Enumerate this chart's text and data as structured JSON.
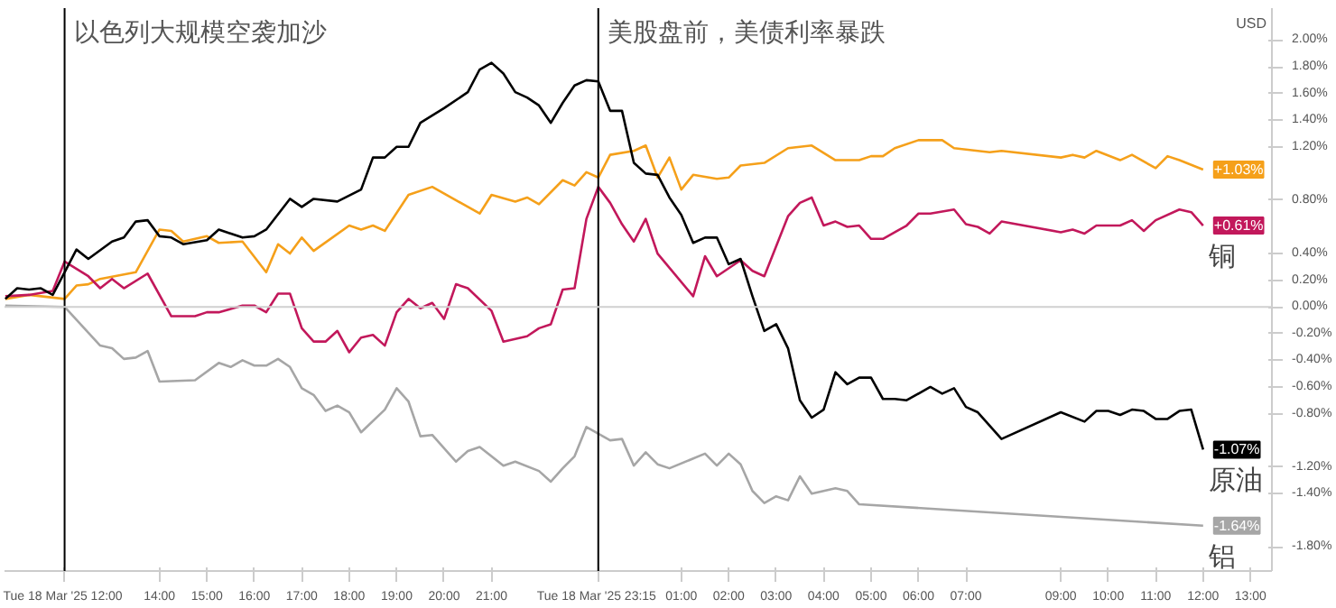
{
  "chart_data": {
    "type": "line",
    "xlim": [
      "2025-03-18T10:44",
      "2025-03-19T13:27"
    ],
    "ylim": [
      -1.98,
      2.24
    ],
    "xticks": [
      {
        "value": "2025-03-18T12:00",
        "label": "Tue 18 Mar '25  12:00"
      },
      {
        "value": "2025-03-18T14:00",
        "label": "14:00"
      },
      {
        "value": "2025-03-18T15:00",
        "label": "15:00"
      },
      {
        "value": "2025-03-18T16:00",
        "label": "16:00"
      },
      {
        "value": "2025-03-18T17:00",
        "label": "17:00"
      },
      {
        "value": "2025-03-18T18:00",
        "label": "18:00"
      },
      {
        "value": "2025-03-18T19:00",
        "label": "19:00"
      },
      {
        "value": "2025-03-18T20:00",
        "label": "20:00"
      },
      {
        "value": "2025-03-18T21:00",
        "label": "21:00"
      },
      {
        "value": "2025-03-18T23:15",
        "label": "Tue 18 Mar '25  23:15"
      },
      {
        "value": "2025-03-19T01:00",
        "label": "01:00"
      },
      {
        "value": "2025-03-19T02:00",
        "label": "02:00"
      },
      {
        "value": "2025-03-19T03:00",
        "label": "03:00"
      },
      {
        "value": "2025-03-19T04:00",
        "label": "04:00"
      },
      {
        "value": "2025-03-19T05:00",
        "label": "05:00"
      },
      {
        "value": "2025-03-19T06:00",
        "label": "06:00"
      },
      {
        "value": "2025-03-19T07:00",
        "label": "07:00"
      },
      {
        "value": "2025-03-19T09:00",
        "label": "09:00"
      },
      {
        "value": "2025-03-19T10:00",
        "label": "10:00"
      },
      {
        "value": "2025-03-19T11:00",
        "label": "11:00"
      },
      {
        "value": "2025-03-19T12:00",
        "label": "12:00"
      },
      {
        "value": "2025-03-19T13:00",
        "label": "13:00"
      }
    ],
    "yticks": [
      {
        "value": 2.0,
        "label": "2.00%"
      },
      {
        "value": 1.8,
        "label": "1.80%"
      },
      {
        "value": 1.6,
        "label": "1.60%"
      },
      {
        "value": 1.4,
        "label": "1.40%"
      },
      {
        "value": 1.2,
        "label": "1.20%"
      },
      {
        "value": 0.8,
        "label": "0.80%"
      },
      {
        "value": 0.4,
        "label": "0.40%"
      },
      {
        "value": 0.2,
        "label": "0.20%"
      },
      {
        "value": 0,
        "label": "0.00%"
      },
      {
        "value": -0.2,
        "label": "-0.20%"
      },
      {
        "value": -0.4,
        "label": "-0.40%"
      },
      {
        "value": -0.6,
        "label": "-0.60%"
      },
      {
        "value": -0.8,
        "label": "-0.80%"
      },
      {
        "value": -1.2,
        "label": "-1.20%"
      },
      {
        "value": -1.4,
        "label": "-1.40%"
      },
      {
        "value": -1.8,
        "label": "-1.80%"
      }
    ],
    "grid": false,
    "legend": "right",
    "ref_lines": [
      {
        "axis": "x",
        "value": "2025-03-18T12:00",
        "label": "以色列大规模空袭加沙",
        "color": "#000000"
      },
      {
        "axis": "x",
        "value": "2025-03-18T23:15",
        "label": "美股盘前，美债利率暴跌",
        "color": "#000000"
      },
      {
        "axis": "y",
        "value": 0,
        "label": null,
        "color": "#d0d0d0"
      }
    ],
    "annotations": [
      "USD",
      {
        "text": "+1.03%",
        "x": "2025-03-19T12:00",
        "y": 1.03
      },
      {
        "text": "+0.61%",
        "x": "2025-03-19T12:00",
        "y": 0.61
      },
      {
        "text": "-1.07%",
        "x": "2025-03-19T12:00",
        "y": -1.07
      },
      {
        "text": "-1.64%",
        "x": "2025-03-19T12:00",
        "y": -1.64
      }
    ],
    "series": [
      {
        "color": "#f5a01a",
        "x": [
          "2025-03-18T10:45",
          "2025-03-18T11:15",
          "2025-03-18T12:00",
          "2025-03-18T12:15",
          "2025-03-18T12:30",
          "2025-03-18T12:45",
          "2025-03-18T13:30",
          "2025-03-18T14:00",
          "2025-03-18T14:15",
          "2025-03-18T14:30",
          "2025-03-18T15:00",
          "2025-03-18T15:15",
          "2025-03-18T15:45",
          "2025-03-18T16:15",
          "2025-03-18T16:30",
          "2025-03-18T16:45",
          "2025-03-18T17:00",
          "2025-03-18T17:15",
          "2025-03-18T18:00",
          "2025-03-18T18:15",
          "2025-03-18T18:30",
          "2025-03-18T18:45",
          "2025-03-18T19:15",
          "2025-03-18T19:45",
          "2025-03-18T20:45",
          "2025-03-18T21:00",
          "2025-03-18T21:30",
          "2025-03-18T21:45",
          "2025-03-18T22:00",
          "2025-03-18T22:30",
          "2025-03-18T22:45",
          "2025-03-18T23:00",
          "2025-03-18T23:15",
          "2025-03-18T23:30",
          "2025-03-19T00:00",
          "2025-03-19T00:15",
          "2025-03-19T00:30",
          "2025-03-19T00:45",
          "2025-03-19T01:00",
          "2025-03-19T01:15",
          "2025-03-19T01:45",
          "2025-03-19T02:00",
          "2025-03-19T02:15",
          "2025-03-19T02:45",
          "2025-03-19T03:15",
          "2025-03-19T03:45",
          "2025-03-19T04:15",
          "2025-03-19T04:45",
          "2025-03-19T05:00",
          "2025-03-19T05:15",
          "2025-03-19T05:30",
          "2025-03-19T06:00",
          "2025-03-19T06:30",
          "2025-03-19T06:45",
          "2025-03-19T07:30",
          "2025-03-19T07:45",
          "2025-03-19T09:00",
          "2025-03-19T09:15",
          "2025-03-19T09:30",
          "2025-03-19T09:45",
          "2025-03-19T10:15",
          "2025-03-19T10:30",
          "2025-03-19T11:00",
          "2025-03-19T11:15",
          "2025-03-19T11:30",
          "2025-03-19T12:00"
        ],
        "values": [
          0.06,
          0.09,
          0.06,
          0.16,
          0.17,
          0.21,
          0.26,
          0.58,
          0.57,
          0.49,
          0.53,
          0.48,
          0.49,
          0.26,
          0.47,
          0.4,
          0.52,
          0.42,
          0.61,
          0.58,
          0.61,
          0.57,
          0.84,
          0.9,
          0.7,
          0.84,
          0.79,
          0.82,
          0.77,
          0.95,
          0.91,
          1.01,
          0.97,
          1.14,
          1.17,
          1.21,
          0.97,
          1.12,
          0.88,
          0.99,
          0.96,
          0.97,
          1.06,
          1.08,
          1.19,
          1.21,
          1.1,
          1.1,
          1.13,
          1.13,
          1.19,
          1.25,
          1.25,
          1.19,
          1.16,
          1.17,
          1.12,
          1.14,
          1.12,
          1.17,
          1.1,
          1.14,
          1.04,
          1.13,
          1.1,
          1.03
        ]
      },
      {
        "name": "铜",
        "color": "#c2185b",
        "x": [
          "2025-03-18T10:45",
          "2025-03-18T11:15",
          "2025-03-18T11:45",
          "2025-03-18T12:00",
          "2025-03-18T12:30",
          "2025-03-18T12:45",
          "2025-03-18T13:00",
          "2025-03-18T13:15",
          "2025-03-18T13:45",
          "2025-03-18T14:15",
          "2025-03-18T14:45",
          "2025-03-18T15:00",
          "2025-03-18T15:15",
          "2025-03-18T15:45",
          "2025-03-18T16:00",
          "2025-03-18T16:15",
          "2025-03-18T16:30",
          "2025-03-18T16:45",
          "2025-03-18T17:00",
          "2025-03-18T17:15",
          "2025-03-18T17:30",
          "2025-03-18T17:45",
          "2025-03-18T18:00",
          "2025-03-18T18:15",
          "2025-03-18T18:30",
          "2025-03-18T18:45",
          "2025-03-18T19:00",
          "2025-03-18T19:15",
          "2025-03-18T19:30",
          "2025-03-18T19:45",
          "2025-03-18T20:00",
          "2025-03-18T20:15",
          "2025-03-18T20:30",
          "2025-03-18T21:00",
          "2025-03-18T21:15",
          "2025-03-18T21:45",
          "2025-03-18T22:00",
          "2025-03-18T22:15",
          "2025-03-18T22:30",
          "2025-03-18T22:45",
          "2025-03-18T23:00",
          "2025-03-18T23:15",
          "2025-03-18T23:30",
          "2025-03-18T23:45",
          "2025-03-19T00:00",
          "2025-03-19T00:15",
          "2025-03-19T00:30",
          "2025-03-19T01:15",
          "2025-03-19T01:30",
          "2025-03-19T01:45",
          "2025-03-19T02:15",
          "2025-03-19T02:30",
          "2025-03-19T02:45",
          "2025-03-19T03:15",
          "2025-03-19T03:30",
          "2025-03-19T03:45",
          "2025-03-19T04:00",
          "2025-03-19T04:15",
          "2025-03-19T04:30",
          "2025-03-19T04:45",
          "2025-03-19T05:00",
          "2025-03-19T05:15",
          "2025-03-19T05:45",
          "2025-03-19T06:00",
          "2025-03-19T06:15",
          "2025-03-19T06:45",
          "2025-03-19T07:00",
          "2025-03-19T07:15",
          "2025-03-19T07:30",
          "2025-03-19T07:45",
          "2025-03-19T09:00",
          "2025-03-19T09:15",
          "2025-03-19T09:30",
          "2025-03-19T09:45",
          "2025-03-19T10:15",
          "2025-03-19T10:30",
          "2025-03-19T10:45",
          "2025-03-19T11:00",
          "2025-03-19T11:30",
          "2025-03-19T11:45",
          "2025-03-19T12:00"
        ],
        "values": [
          0.08,
          0.09,
          0.12,
          0.34,
          0.23,
          0.14,
          0.21,
          0.14,
          0.25,
          -0.07,
          -0.07,
          -0.04,
          -0.04,
          0.01,
          0.01,
          -0.04,
          0.1,
          0.1,
          -0.16,
          -0.26,
          -0.26,
          -0.18,
          -0.34,
          -0.23,
          -0.21,
          -0.29,
          -0.04,
          0.06,
          -0.01,
          0.03,
          -0.09,
          0.17,
          0.14,
          -0.03,
          -0.26,
          -0.22,
          -0.16,
          -0.13,
          0.13,
          0.14,
          0.66,
          0.9,
          0.78,
          0.62,
          0.49,
          0.66,
          0.4,
          0.08,
          0.38,
          0.23,
          0.35,
          0.27,
          0.23,
          0.68,
          0.78,
          0.82,
          0.61,
          0.64,
          0.6,
          0.61,
          0.51,
          0.51,
          0.61,
          0.7,
          0.7,
          0.73,
          0.62,
          0.6,
          0.55,
          0.64,
          0.56,
          0.58,
          0.55,
          0.61,
          0.61,
          0.65,
          0.57,
          0.65,
          0.73,
          0.71,
          0.61
        ]
      },
      {
        "name": "原油",
        "color": "#000000",
        "x": [
          "2025-03-18T10:45",
          "2025-03-18T11:00",
          "2025-03-18T11:15",
          "2025-03-18T11:30",
          "2025-03-18T11:45",
          "2025-03-18T12:00",
          "2025-03-18T12:15",
          "2025-03-18T12:30",
          "2025-03-18T13:00",
          "2025-03-18T13:15",
          "2025-03-18T13:30",
          "2025-03-18T13:45",
          "2025-03-18T14:00",
          "2025-03-18T14:15",
          "2025-03-18T14:30",
          "2025-03-18T15:00",
          "2025-03-18T15:15",
          "2025-03-18T15:45",
          "2025-03-18T16:00",
          "2025-03-18T16:15",
          "2025-03-18T16:45",
          "2025-03-18T17:00",
          "2025-03-18T17:15",
          "2025-03-18T17:45",
          "2025-03-18T18:15",
          "2025-03-18T18:30",
          "2025-03-18T18:45",
          "2025-03-18T19:00",
          "2025-03-18T19:15",
          "2025-03-18T19:30",
          "2025-03-18T20:00",
          "2025-03-18T20:30",
          "2025-03-18T20:45",
          "2025-03-18T21:00",
          "2025-03-18T21:15",
          "2025-03-18T21:30",
          "2025-03-18T21:45",
          "2025-03-18T22:00",
          "2025-03-18T22:15",
          "2025-03-18T22:30",
          "2025-03-18T22:45",
          "2025-03-18T23:00",
          "2025-03-18T23:15",
          "2025-03-18T23:30",
          "2025-03-18T23:45",
          "2025-03-19T00:00",
          "2025-03-19T00:15",
          "2025-03-19T00:30",
          "2025-03-19T00:45",
          "2025-03-19T01:00",
          "2025-03-19T01:15",
          "2025-03-19T01:30",
          "2025-03-19T01:45",
          "2025-03-19T02:00",
          "2025-03-19T02:15",
          "2025-03-19T02:30",
          "2025-03-19T02:45",
          "2025-03-19T03:00",
          "2025-03-19T03:15",
          "2025-03-19T03:30",
          "2025-03-19T03:45",
          "2025-03-19T04:00",
          "2025-03-19T04:15",
          "2025-03-19T04:30",
          "2025-03-19T04:45",
          "2025-03-19T05:00",
          "2025-03-19T05:15",
          "2025-03-19T05:30",
          "2025-03-19T05:45",
          "2025-03-19T06:15",
          "2025-03-19T06:30",
          "2025-03-19T06:45",
          "2025-03-19T07:00",
          "2025-03-19T07:15",
          "2025-03-19T07:45",
          "2025-03-19T09:00",
          "2025-03-19T09:30",
          "2025-03-19T09:45",
          "2025-03-19T10:00",
          "2025-03-19T10:15",
          "2025-03-19T10:30",
          "2025-03-19T10:45",
          "2025-03-19T11:00",
          "2025-03-19T11:15",
          "2025-03-19T11:30",
          "2025-03-19T11:45",
          "2025-03-19T12:00"
        ],
        "values": [
          0.06,
          0.14,
          0.13,
          0.14,
          0.09,
          0.26,
          0.43,
          0.36,
          0.49,
          0.52,
          0.64,
          0.65,
          0.53,
          0.52,
          0.47,
          0.5,
          0.58,
          0.52,
          0.53,
          0.58,
          0.81,
          0.75,
          0.81,
          0.79,
          0.88,
          1.12,
          1.12,
          1.2,
          1.2,
          1.38,
          1.49,
          1.61,
          1.78,
          1.83,
          1.75,
          1.61,
          1.57,
          1.51,
          1.38,
          1.53,
          1.66,
          1.7,
          1.69,
          1.47,
          1.47,
          1.08,
          1.0,
          0.99,
          0.82,
          0.69,
          0.48,
          0.52,
          0.52,
          0.32,
          0.36,
          0.08,
          -0.18,
          -0.13,
          -0.31,
          -0.7,
          -0.83,
          -0.77,
          -0.49,
          -0.58,
          -0.53,
          -0.53,
          -0.69,
          -0.69,
          -0.7,
          -0.6,
          -0.65,
          -0.61,
          -0.75,
          -0.79,
          -0.99,
          -0.79,
          -0.86,
          -0.78,
          -0.78,
          -0.81,
          -0.77,
          -0.78,
          -0.84,
          -0.84,
          -0.78,
          -0.77,
          -1.07
        ]
      },
      {
        "name": "铝",
        "color": "#a6a6a6",
        "x": [
          "2025-03-18T10:45",
          "2025-03-18T12:00",
          "2025-03-18T12:45",
          "2025-03-18T13:00",
          "2025-03-18T13:15",
          "2025-03-18T13:30",
          "2025-03-18T13:45",
          "2025-03-18T14:00",
          "2025-03-18T14:45",
          "2025-03-18T15:15",
          "2025-03-18T15:30",
          "2025-03-18T15:45",
          "2025-03-18T16:00",
          "2025-03-18T16:15",
          "2025-03-18T16:30",
          "2025-03-18T16:45",
          "2025-03-18T17:00",
          "2025-03-18T17:15",
          "2025-03-18T17:30",
          "2025-03-18T17:45",
          "2025-03-18T18:00",
          "2025-03-18T18:15",
          "2025-03-18T18:45",
          "2025-03-18T19:00",
          "2025-03-18T19:15",
          "2025-03-18T19:30",
          "2025-03-18T19:45",
          "2025-03-18T20:15",
          "2025-03-18T20:30",
          "2025-03-18T20:45",
          "2025-03-18T21:15",
          "2025-03-18T21:30",
          "2025-03-18T22:00",
          "2025-03-18T22:15",
          "2025-03-18T22:30",
          "2025-03-18T22:45",
          "2025-03-18T23:00",
          "2025-03-18T23:30",
          "2025-03-18T23:45",
          "2025-03-19T00:00",
          "2025-03-19T00:15",
          "2025-03-19T00:30",
          "2025-03-19T00:45",
          "2025-03-19T01:30",
          "2025-03-19T01:45",
          "2025-03-19T02:00",
          "2025-03-19T02:15",
          "2025-03-19T02:30",
          "2025-03-19T02:45",
          "2025-03-19T03:00",
          "2025-03-19T03:15",
          "2025-03-19T03:30",
          "2025-03-19T03:45",
          "2025-03-19T04:15",
          "2025-03-19T04:30",
          "2025-03-19T04:45",
          "2025-03-19T12:00"
        ],
        "values": [
          0.01,
          0.0,
          -0.29,
          -0.31,
          -0.39,
          -0.38,
          -0.33,
          -0.56,
          -0.55,
          -0.42,
          -0.45,
          -0.4,
          -0.44,
          -0.44,
          -0.39,
          -0.45,
          -0.61,
          -0.66,
          -0.78,
          -0.74,
          -0.79,
          -0.94,
          -0.77,
          -0.61,
          -0.71,
          -0.97,
          -0.96,
          -1.16,
          -1.08,
          -1.05,
          -1.19,
          -1.16,
          -1.23,
          -1.31,
          -1.21,
          -1.12,
          -0.9,
          -1.0,
          -0.99,
          -1.19,
          -1.09,
          -1.18,
          -1.21,
          -1.1,
          -1.19,
          -1.1,
          -1.18,
          -1.38,
          -1.47,
          -1.42,
          -1.45,
          -1.27,
          -1.4,
          -1.36,
          -1.38,
          -1.48,
          -1.64
        ]
      }
    ]
  }
}
